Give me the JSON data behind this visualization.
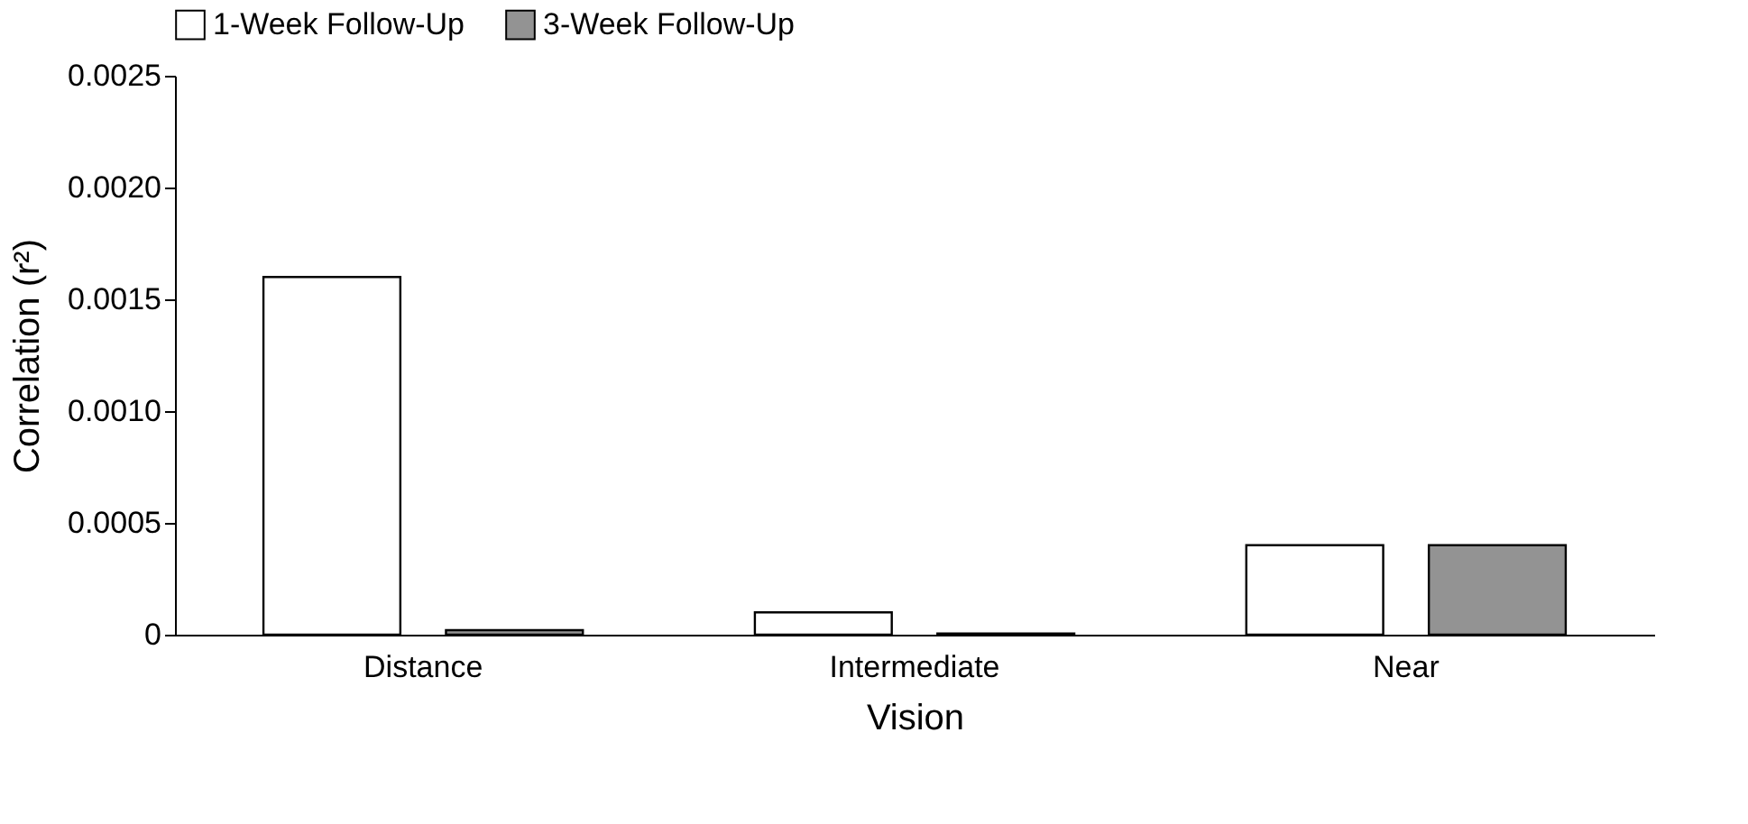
{
  "chart_data": {
    "type": "bar",
    "xlabel": "Vision",
    "ylabel": "Correlation (r²)",
    "categories": [
      "Distance",
      "Intermediate",
      "Near"
    ],
    "series": [
      {
        "name": "1-Week Follow-Up",
        "color": "#ffffff",
        "values": [
          0.0016,
          0.0001,
          0.0004
        ]
      },
      {
        "name": "3-Week Follow-Up",
        "color": "#939393",
        "values": [
          2e-05,
          5e-06,
          0.0004
        ]
      }
    ],
    "ylim": [
      0,
      0.0025
    ],
    "yticks": [
      0,
      0.0005,
      {
        "value": 0.001,
        "label": "0.0010"
      },
      {
        "value": 0.0015,
        "label": "0.0015"
      },
      {
        "value": 0.002,
        "label": "0.0020"
      },
      {
        "value": 0.0025,
        "label": "0.0025"
      }
    ],
    "grid": false,
    "legend": "top"
  }
}
